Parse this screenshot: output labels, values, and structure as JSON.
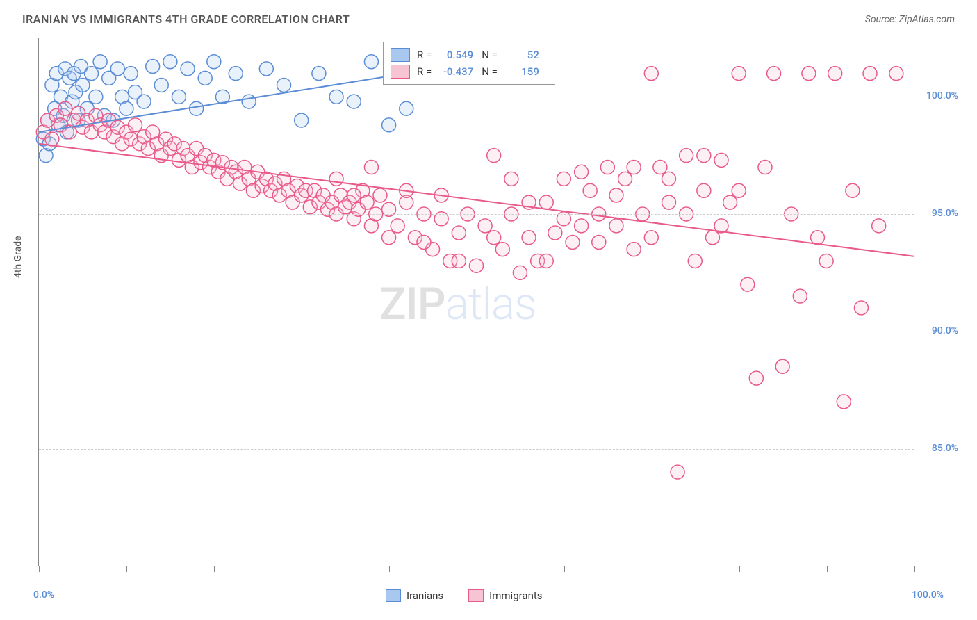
{
  "title": "IRANIAN VS IMMIGRANTS 4TH GRADE CORRELATION CHART",
  "source": "Source: ZipAtlas.com",
  "y_axis_label": "4th Grade",
  "watermark": {
    "part1": "ZIP",
    "part2": "atlas"
  },
  "chart": {
    "type": "scatter",
    "xlim": [
      0,
      100
    ],
    "ylim": [
      80,
      102.5
    ],
    "y_ticks": [
      85.0,
      90.0,
      95.0,
      100.0
    ],
    "y_tick_labels": [
      "85.0%",
      "90.0%",
      "95.0%",
      "100.0%"
    ],
    "x_ticks": [
      0,
      10,
      20,
      30,
      40,
      50,
      60,
      70,
      80,
      90,
      100
    ],
    "x_min_label": "0.0%",
    "x_max_label": "100.0%",
    "grid_color": "#cccccc",
    "axis_color": "#888888",
    "background_color": "#ffffff",
    "marker_radius": 10,
    "marker_stroke_width": 1.5,
    "marker_fill_opacity": 0.25,
    "trend_line_width": 2,
    "series": [
      {
        "name": "Iranians",
        "color_fill": "#a8c8f0",
        "color_stroke": "#5b8dd6",
        "R": "0.549",
        "N": "52",
        "trend": {
          "x1": 0,
          "y1": 98.5,
          "x2": 42,
          "y2": 101.0
        },
        "points": [
          [
            0.5,
            98.2
          ],
          [
            0.8,
            97.5
          ],
          [
            1.0,
            99.0
          ],
          [
            1.2,
            98.0
          ],
          [
            1.5,
            100.5
          ],
          [
            1.8,
            99.5
          ],
          [
            2.0,
            101.0
          ],
          [
            2.2,
            98.8
          ],
          [
            2.5,
            100.0
          ],
          [
            2.8,
            99.2
          ],
          [
            3.0,
            101.2
          ],
          [
            3.2,
            98.5
          ],
          [
            3.5,
            100.8
          ],
          [
            3.8,
            99.8
          ],
          [
            4.0,
            101.0
          ],
          [
            4.2,
            100.2
          ],
          [
            4.5,
            99.0
          ],
          [
            4.8,
            101.3
          ],
          [
            5.0,
            100.5
          ],
          [
            5.5,
            99.5
          ],
          [
            6.0,
            101.0
          ],
          [
            6.5,
            100.0
          ],
          [
            7.0,
            101.5
          ],
          [
            7.5,
            99.2
          ],
          [
            8.0,
            100.8
          ],
          [
            8.5,
            99.0
          ],
          [
            9.0,
            101.2
          ],
          [
            9.5,
            100.0
          ],
          [
            10.0,
            99.5
          ],
          [
            10.5,
            101.0
          ],
          [
            11.0,
            100.2
          ],
          [
            12.0,
            99.8
          ],
          [
            13.0,
            101.3
          ],
          [
            14.0,
            100.5
          ],
          [
            15.0,
            101.5
          ],
          [
            16.0,
            100.0
          ],
          [
            17.0,
            101.2
          ],
          [
            18.0,
            99.5
          ],
          [
            19.0,
            100.8
          ],
          [
            20.0,
            101.5
          ],
          [
            21.0,
            100.0
          ],
          [
            22.5,
            101.0
          ],
          [
            24.0,
            99.8
          ],
          [
            26.0,
            101.2
          ],
          [
            28.0,
            100.5
          ],
          [
            30.0,
            99.0
          ],
          [
            32.0,
            101.0
          ],
          [
            34.0,
            100.0
          ],
          [
            36.0,
            99.8
          ],
          [
            38.0,
            101.5
          ],
          [
            40.0,
            98.8
          ],
          [
            42.0,
            99.5
          ]
        ]
      },
      {
        "name": "Immigrants",
        "color_fill": "#f7c4d4",
        "color_stroke": "#e85a8a",
        "R": "-0.437",
        "N": "159",
        "trend": {
          "x1": 0,
          "y1": 98.0,
          "x2": 100,
          "y2": 93.2
        },
        "points": [
          [
            0.5,
            98.5
          ],
          [
            1.0,
            99.0
          ],
          [
            1.5,
            98.2
          ],
          [
            2.0,
            99.2
          ],
          [
            2.5,
            98.8
          ],
          [
            3.0,
            99.5
          ],
          [
            3.5,
            98.5
          ],
          [
            4.0,
            99.0
          ],
          [
            4.5,
            99.3
          ],
          [
            5.0,
            98.7
          ],
          [
            5.5,
            99.0
          ],
          [
            6.0,
            98.5
          ],
          [
            6.5,
            99.2
          ],
          [
            7.0,
            98.8
          ],
          [
            7.5,
            98.5
          ],
          [
            8.0,
            99.0
          ],
          [
            8.5,
            98.3
          ],
          [
            9.0,
            98.7
          ],
          [
            9.5,
            98.0
          ],
          [
            10.0,
            98.5
          ],
          [
            10.5,
            98.2
          ],
          [
            11.0,
            98.8
          ],
          [
            11.5,
            98.0
          ],
          [
            12.0,
            98.3
          ],
          [
            12.5,
            97.8
          ],
          [
            13.0,
            98.5
          ],
          [
            13.5,
            98.0
          ],
          [
            14.0,
            97.5
          ],
          [
            14.5,
            98.2
          ],
          [
            15.0,
            97.8
          ],
          [
            15.5,
            98.0
          ],
          [
            16.0,
            97.3
          ],
          [
            16.5,
            97.8
          ],
          [
            17.0,
            97.5
          ],
          [
            17.5,
            97.0
          ],
          [
            18.0,
            97.8
          ],
          [
            18.5,
            97.2
          ],
          [
            19.0,
            97.5
          ],
          [
            19.5,
            97.0
          ],
          [
            20.0,
            97.3
          ],
          [
            20.5,
            96.8
          ],
          [
            21.0,
            97.2
          ],
          [
            21.5,
            96.5
          ],
          [
            22.0,
            97.0
          ],
          [
            22.5,
            96.8
          ],
          [
            23.0,
            96.3
          ],
          [
            23.5,
            97.0
          ],
          [
            24.0,
            96.5
          ],
          [
            24.5,
            96.0
          ],
          [
            25.0,
            96.8
          ],
          [
            25.5,
            96.2
          ],
          [
            26.0,
            96.5
          ],
          [
            26.5,
            96.0
          ],
          [
            27.0,
            96.3
          ],
          [
            27.5,
            95.8
          ],
          [
            28.0,
            96.5
          ],
          [
            28.5,
            96.0
          ],
          [
            29.0,
            95.5
          ],
          [
            29.5,
            96.2
          ],
          [
            30.0,
            95.8
          ],
          [
            30.5,
            96.0
          ],
          [
            31.0,
            95.3
          ],
          [
            31.5,
            96.0
          ],
          [
            32.0,
            95.5
          ],
          [
            32.5,
            95.8
          ],
          [
            33.0,
            95.2
          ],
          [
            33.5,
            95.5
          ],
          [
            34.0,
            95.0
          ],
          [
            34.5,
            95.8
          ],
          [
            35.0,
            95.3
          ],
          [
            35.5,
            95.5
          ],
          [
            36.0,
            94.8
          ],
          [
            36.5,
            95.2
          ],
          [
            37.0,
            96.0
          ],
          [
            37.5,
            95.5
          ],
          [
            38.0,
            94.5
          ],
          [
            38.5,
            95.0
          ],
          [
            39.0,
            95.8
          ],
          [
            40.0,
            95.2
          ],
          [
            41.0,
            94.5
          ],
          [
            42.0,
            95.5
          ],
          [
            43.0,
            94.0
          ],
          [
            44.0,
            95.0
          ],
          [
            45.0,
            93.5
          ],
          [
            46.0,
            94.8
          ],
          [
            47.0,
            93.0
          ],
          [
            48.0,
            94.2
          ],
          [
            49.0,
            95.0
          ],
          [
            50.0,
            92.8
          ],
          [
            51.0,
            94.5
          ],
          [
            52.0,
            97.5
          ],
          [
            53.0,
            93.5
          ],
          [
            54.0,
            95.0
          ],
          [
            55.0,
            92.5
          ],
          [
            56.0,
            94.0
          ],
          [
            57.0,
            93.0
          ],
          [
            58.0,
            95.5
          ],
          [
            59.0,
            94.2
          ],
          [
            60.0,
            96.5
          ],
          [
            61.0,
            93.8
          ],
          [
            62.0,
            94.5
          ],
          [
            63.0,
            96.0
          ],
          [
            64.0,
            95.0
          ],
          [
            65.0,
            97.0
          ],
          [
            66.0,
            94.5
          ],
          [
            67.0,
            96.5
          ],
          [
            68.0,
            93.5
          ],
          [
            69.0,
            95.0
          ],
          [
            70.0,
            101.0
          ],
          [
            71.0,
            97.0
          ],
          [
            72.0,
            95.5
          ],
          [
            73.0,
            84.0
          ],
          [
            74.0,
            97.5
          ],
          [
            75.0,
            93.0
          ],
          [
            76.0,
            96.0
          ],
          [
            77.0,
            94.0
          ],
          [
            78.0,
            97.3
          ],
          [
            79.0,
            95.5
          ],
          [
            80.0,
            101.0
          ],
          [
            81.0,
            92.0
          ],
          [
            82.0,
            88.0
          ],
          [
            83.0,
            97.0
          ],
          [
            84.0,
            101.0
          ],
          [
            85.0,
            88.5
          ],
          [
            86.0,
            95.0
          ],
          [
            87.0,
            91.5
          ],
          [
            88.0,
            101.0
          ],
          [
            89.0,
            94.0
          ],
          [
            90.0,
            93.0
          ],
          [
            91.0,
            101.0
          ],
          [
            92.0,
            87.0
          ],
          [
            93.0,
            96.0
          ],
          [
            94.0,
            91.0
          ],
          [
            95.0,
            101.0
          ],
          [
            96.0,
            94.5
          ],
          [
            98.0,
            101.0
          ],
          [
            52.0,
            94.0
          ],
          [
            54.0,
            96.5
          ],
          [
            56.0,
            95.5
          ],
          [
            58.0,
            93.0
          ],
          [
            60.0,
            94.8
          ],
          [
            62.0,
            96.8
          ],
          [
            64.0,
            93.8
          ],
          [
            66.0,
            95.8
          ],
          [
            68.0,
            97.0
          ],
          [
            70.0,
            94.0
          ],
          [
            72.0,
            96.5
          ],
          [
            74.0,
            95.0
          ],
          [
            76.0,
            97.5
          ],
          [
            78.0,
            94.5
          ],
          [
            80.0,
            96.0
          ],
          [
            34.0,
            96.5
          ],
          [
            36.0,
            95.8
          ],
          [
            38.0,
            97.0
          ],
          [
            40.0,
            94.0
          ],
          [
            42.0,
            96.0
          ],
          [
            44.0,
            93.8
          ],
          [
            46.0,
            95.8
          ],
          [
            48.0,
            93.0
          ]
        ]
      }
    ]
  },
  "legend_top": {
    "R_label": "R =",
    "N_label": "N ="
  },
  "legend_bottom": {
    "series1_label": "Iranians",
    "series2_label": "Immigrants"
  }
}
